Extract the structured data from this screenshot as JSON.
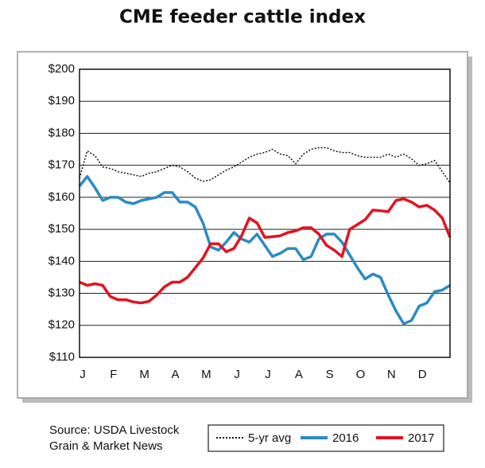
{
  "chart_data": {
    "type": "line",
    "title": "CME feeder cattle index",
    "source": [
      "Source: USDA Livestock",
      "Grain & Market News"
    ],
    "categories": [
      "J",
      null,
      null,
      null,
      "F",
      null,
      null,
      null,
      "M",
      null,
      null,
      null,
      "A",
      null,
      null,
      null,
      "M",
      null,
      null,
      null,
      "J",
      null,
      null,
      null,
      "J",
      null,
      null,
      null,
      "A",
      null,
      null,
      null,
      "S",
      null,
      null,
      null,
      "O",
      null,
      null,
      null,
      "N",
      null,
      null,
      null,
      "D",
      null,
      null,
      null,
      null
    ],
    "series": [
      {
        "name": "5-yr avg",
        "color": "#111111",
        "dash": true,
        "values": [
          166,
          174.5,
          173,
          169.5,
          169,
          168,
          167.5,
          167,
          166.5,
          167.5,
          168,
          169,
          170,
          169.5,
          168,
          166,
          165,
          165.5,
          167,
          168.5,
          169.5,
          171,
          172.5,
          173.5,
          174,
          175,
          173.5,
          173,
          170.5,
          173.5,
          175,
          175.5,
          175.5,
          174.5,
          174,
          174,
          173,
          172.5,
          172.5,
          172.5,
          173.5,
          172.5,
          173.5,
          172,
          170,
          170.5,
          171.5,
          168,
          164.5
        ]
      },
      {
        "name": "2016",
        "color": "#2b8bc6",
        "values": [
          163.5,
          166.5,
          163,
          159,
          160,
          160,
          158.5,
          158,
          159,
          159.5,
          160,
          161.5,
          161.5,
          158.5,
          158.5,
          157,
          152,
          144.5,
          143.5,
          146,
          149,
          147,
          146,
          148.5,
          145,
          141.5,
          142.5,
          144,
          144,
          140.5,
          141.5,
          147,
          148.5,
          148.5,
          146,
          142,
          138,
          134.5,
          136,
          135,
          129.5,
          124.5,
          120.5,
          121.5,
          126,
          127,
          130.5,
          131,
          132.5
        ]
      },
      {
        "name": "2017",
        "color": "#e3131f",
        "values": [
          133.5,
          132.5,
          133,
          132.5,
          129,
          128,
          128,
          127.3,
          127,
          127.5,
          129.5,
          132,
          133.5,
          133.5,
          135,
          138,
          141,
          145.5,
          145.5,
          143,
          144,
          148,
          153.5,
          152,
          147.5,
          147.7,
          148,
          149,
          149.5,
          150.5,
          150.5,
          148.5,
          145,
          143.5,
          141.5,
          150,
          151.5,
          153,
          156,
          155.8,
          155.5,
          159,
          159.5,
          158.5,
          157,
          157.5,
          156,
          153.5,
          147.5
        ]
      }
    ],
    "ylim": [
      110,
      200
    ],
    "yticks": [
      {
        "value": 110,
        "label": "$110"
      },
      {
        "value": 120,
        "label": "$120"
      },
      {
        "value": 130,
        "label": "$130"
      },
      {
        "value": 140,
        "label": "$140"
      },
      {
        "value": 150,
        "label": "$150"
      },
      {
        "value": 160,
        "label": "$160"
      },
      {
        "value": 170,
        "label": "$170"
      },
      {
        "value": 180,
        "label": "$180"
      },
      {
        "value": 190,
        "label": "$190"
      },
      {
        "value": 200,
        "label": "$200"
      }
    ],
    "grid": true
  }
}
